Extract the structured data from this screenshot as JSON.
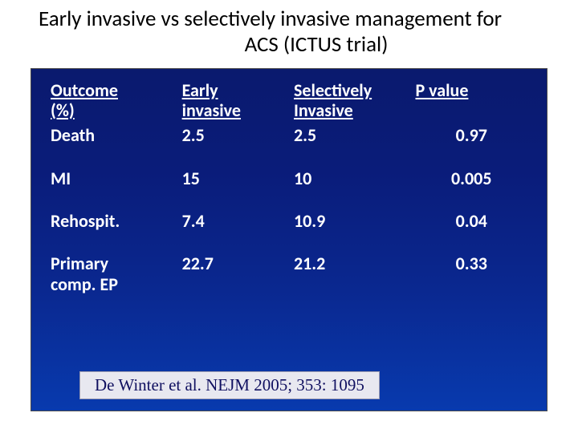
{
  "title_line1": "Early invasive vs selectively invasive management  for",
  "title_line2": "ACS (ICTUS trial)",
  "table": {
    "headers": {
      "outcome_l1": "Outcome",
      "outcome_l2": "(%)",
      "early_l1": "Early",
      "early_l2": "invasive",
      "sel_l1": " Selectively",
      "sel_l2": " Invasive",
      "p_l1": " P value"
    },
    "rows": [
      {
        "label_l1": "Death",
        "label_l2": "",
        "early": "2.5",
        "sel": "2.5",
        "p": "0.97"
      },
      {
        "label_l1": "MI",
        "label_l2": "",
        "early": "15",
        "sel": "10",
        "p": "0.005"
      },
      {
        "label_l1": "Rehospit.",
        "label_l2": "",
        "early": "7.4",
        "sel": "10.9",
        "p": "0.04"
      },
      {
        "label_l1": "Primary",
        "label_l2": "comp. EP",
        "early": "22.7",
        "sel": "21.2",
        "p": "0.33"
      }
    ]
  },
  "citation": "De Winter et al. NEJM 2005; 353: 1095",
  "colors": {
    "panel_top": "#0a1a6e",
    "panel_bottom": "#083aae",
    "text": "#ffffff",
    "title": "#000000",
    "citation_bg": "#e8e8f0",
    "citation_text": "#101060"
  },
  "fontsize": {
    "title": 27,
    "table": 22,
    "citation": 21
  }
}
